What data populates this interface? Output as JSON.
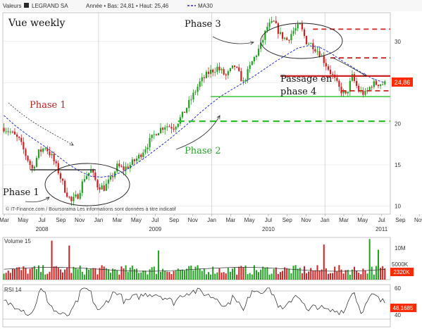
{
  "header": {
    "valeurs_label": "Valeurs",
    "ticker": "LEGRAND SA",
    "summary": "Année • Bas: 24,81 • Haut: 25,46",
    "ma_label": "MA30"
  },
  "colors": {
    "up": "#22a022",
    "down": "#cc2222",
    "ma": "#2233cc",
    "price_box": "#ff2a00",
    "green_line": "#2bbf2b",
    "red_line": "#cc2222"
  },
  "chart_data": {
    "type": "candlestick",
    "x_tick_labels": [
      "Mar",
      "May",
      "Jul",
      "Sep",
      "Nov",
      "Jan",
      "Mar",
      "May",
      "Jul",
      "Sep",
      "Nov",
      "Jan",
      "Mar",
      "May",
      "Jul",
      "Sep",
      "Nov",
      "Jan",
      "Mar",
      "May",
      "Jul",
      "Sep",
      "Nov",
      "Jan"
    ],
    "year_labels": [
      {
        "label": "2008",
        "month_index": 2
      },
      {
        "label": "2009",
        "month_index": 8
      },
      {
        "label": "2010",
        "month_index": 14
      },
      {
        "label": "2011",
        "month_index": 20
      }
    ],
    "y_ticks": [
      10,
      15,
      20,
      25,
      30
    ],
    "ylim": [
      9,
      33.5
    ],
    "price_path": [
      [
        0,
        19.5
      ],
      [
        3,
        19.0
      ],
      [
        7,
        18.0
      ],
      [
        10,
        16.2
      ],
      [
        13,
        14.5
      ],
      [
        16,
        16.5
      ],
      [
        19,
        17.2
      ],
      [
        22,
        16.0
      ],
      [
        25,
        14.2
      ],
      [
        28,
        12.0
      ],
      [
        31,
        10.5
      ],
      [
        34,
        11.3
      ],
      [
        37,
        13.5
      ],
      [
        40,
        14.3
      ],
      [
        43,
        12.5
      ],
      [
        46,
        12.2
      ],
      [
        49,
        13.2
      ],
      [
        52,
        14.8
      ],
      [
        55,
        14.5
      ],
      [
        58,
        15.0
      ],
      [
        62,
        16.0
      ],
      [
        66,
        17.5
      ],
      [
        70,
        19.0
      ],
      [
        74,
        19.8
      ],
      [
        78,
        19.6
      ],
      [
        82,
        21.0
      ],
      [
        86,
        23.0
      ],
      [
        90,
        25.0
      ],
      [
        94,
        26.2
      ],
      [
        98,
        26.8
      ],
      [
        102,
        25.8
      ],
      [
        106,
        27.0
      ],
      [
        110,
        25.0
      ],
      [
        114,
        27.5
      ],
      [
        118,
        29.5
      ],
      [
        121,
        31.8
      ],
      [
        124,
        32.3
      ],
      [
        127,
        30.8
      ],
      [
        130,
        30.2
      ],
      [
        133,
        31.3
      ],
      [
        136,
        31.9
      ],
      [
        139,
        30.0
      ],
      [
        142,
        29.5
      ],
      [
        145,
        28.6
      ],
      [
        148,
        27.2
      ],
      [
        151,
        25.8
      ],
      [
        154,
        24.3
      ],
      [
        157,
        23.4
      ],
      [
        160,
        25.7
      ],
      [
        163,
        24.0
      ],
      [
        166,
        23.6
      ],
      [
        169,
        24.8
      ],
      [
        172,
        24.9
      ],
      [
        175,
        24.85
      ]
    ],
    "ma30_path": [
      [
        0,
        21.0
      ],
      [
        5,
        19.8
      ],
      [
        10,
        18.8
      ],
      [
        15,
        17.9
      ],
      [
        20,
        17.0
      ],
      [
        25,
        16.0
      ],
      [
        30,
        15.0
      ],
      [
        35,
        14.2
      ],
      [
        40,
        13.6
      ],
      [
        45,
        13.5
      ],
      [
        50,
        13.7
      ],
      [
        55,
        14.2
      ],
      [
        60,
        15.0
      ],
      [
        65,
        15.9
      ],
      [
        70,
        16.9
      ],
      [
        75,
        17.9
      ],
      [
        80,
        19.0
      ],
      [
        85,
        20.1
      ],
      [
        90,
        21.3
      ],
      [
        95,
        22.4
      ],
      [
        100,
        23.4
      ],
      [
        105,
        24.2
      ],
      [
        110,
        25.0
      ],
      [
        115,
        25.8
      ],
      [
        120,
        26.7
      ],
      [
        125,
        27.6
      ],
      [
        130,
        28.4
      ],
      [
        135,
        29.2
      ],
      [
        140,
        29.5
      ],
      [
        145,
        29.3
      ],
      [
        150,
        28.6
      ],
      [
        155,
        27.7
      ],
      [
        160,
        26.9
      ],
      [
        165,
        26.1
      ],
      [
        170,
        25.4
      ],
      [
        175,
        25.0
      ]
    ],
    "last_price": "24,86",
    "annotations": {
      "title": "Vue weekly",
      "phase1": "Phase 1",
      "phase2": "Phase 2",
      "phase3": "Phase 3",
      "phase4": "Phase 4",
      "passage_line1": "Passage en",
      "passage_line2": "phase 4"
    },
    "copyright": "© IT-Finance.com / Boursorama Les informations sont données à titre indicatif",
    "horizontal_lines": {
      "black": [
        {
          "from": 12,
          "to": 42,
          "y": 14.4
        }
      ],
      "green": [
        {
          "from": 95,
          "to": 178,
          "y": 23.3,
          "dashed": false
        },
        {
          "from": 80,
          "to": 178,
          "y": 20.3,
          "dashed": true
        }
      ],
      "red": [
        {
          "from": 127,
          "to": 178,
          "y": 25.8,
          "dashed": false
        },
        {
          "from": 155,
          "to": 178,
          "y": 24.0,
          "dashed": true
        },
        {
          "from": 150,
          "to": 178,
          "y": 28.0,
          "dashed": true
        },
        {
          "from": 142,
          "to": 178,
          "y": 31.5,
          "dashed": true
        }
      ]
    },
    "volume": {
      "label": "Volume 15",
      "ticks": [
        "10M",
        "5000K"
      ],
      "last": "2320K",
      "ylim_k": [
        0,
        13000
      ]
    },
    "rsi": {
      "label": "RSI 14",
      "ticks": [
        60,
        40
      ],
      "last": "48,1685",
      "ylim": [
        20,
        70
      ]
    }
  }
}
